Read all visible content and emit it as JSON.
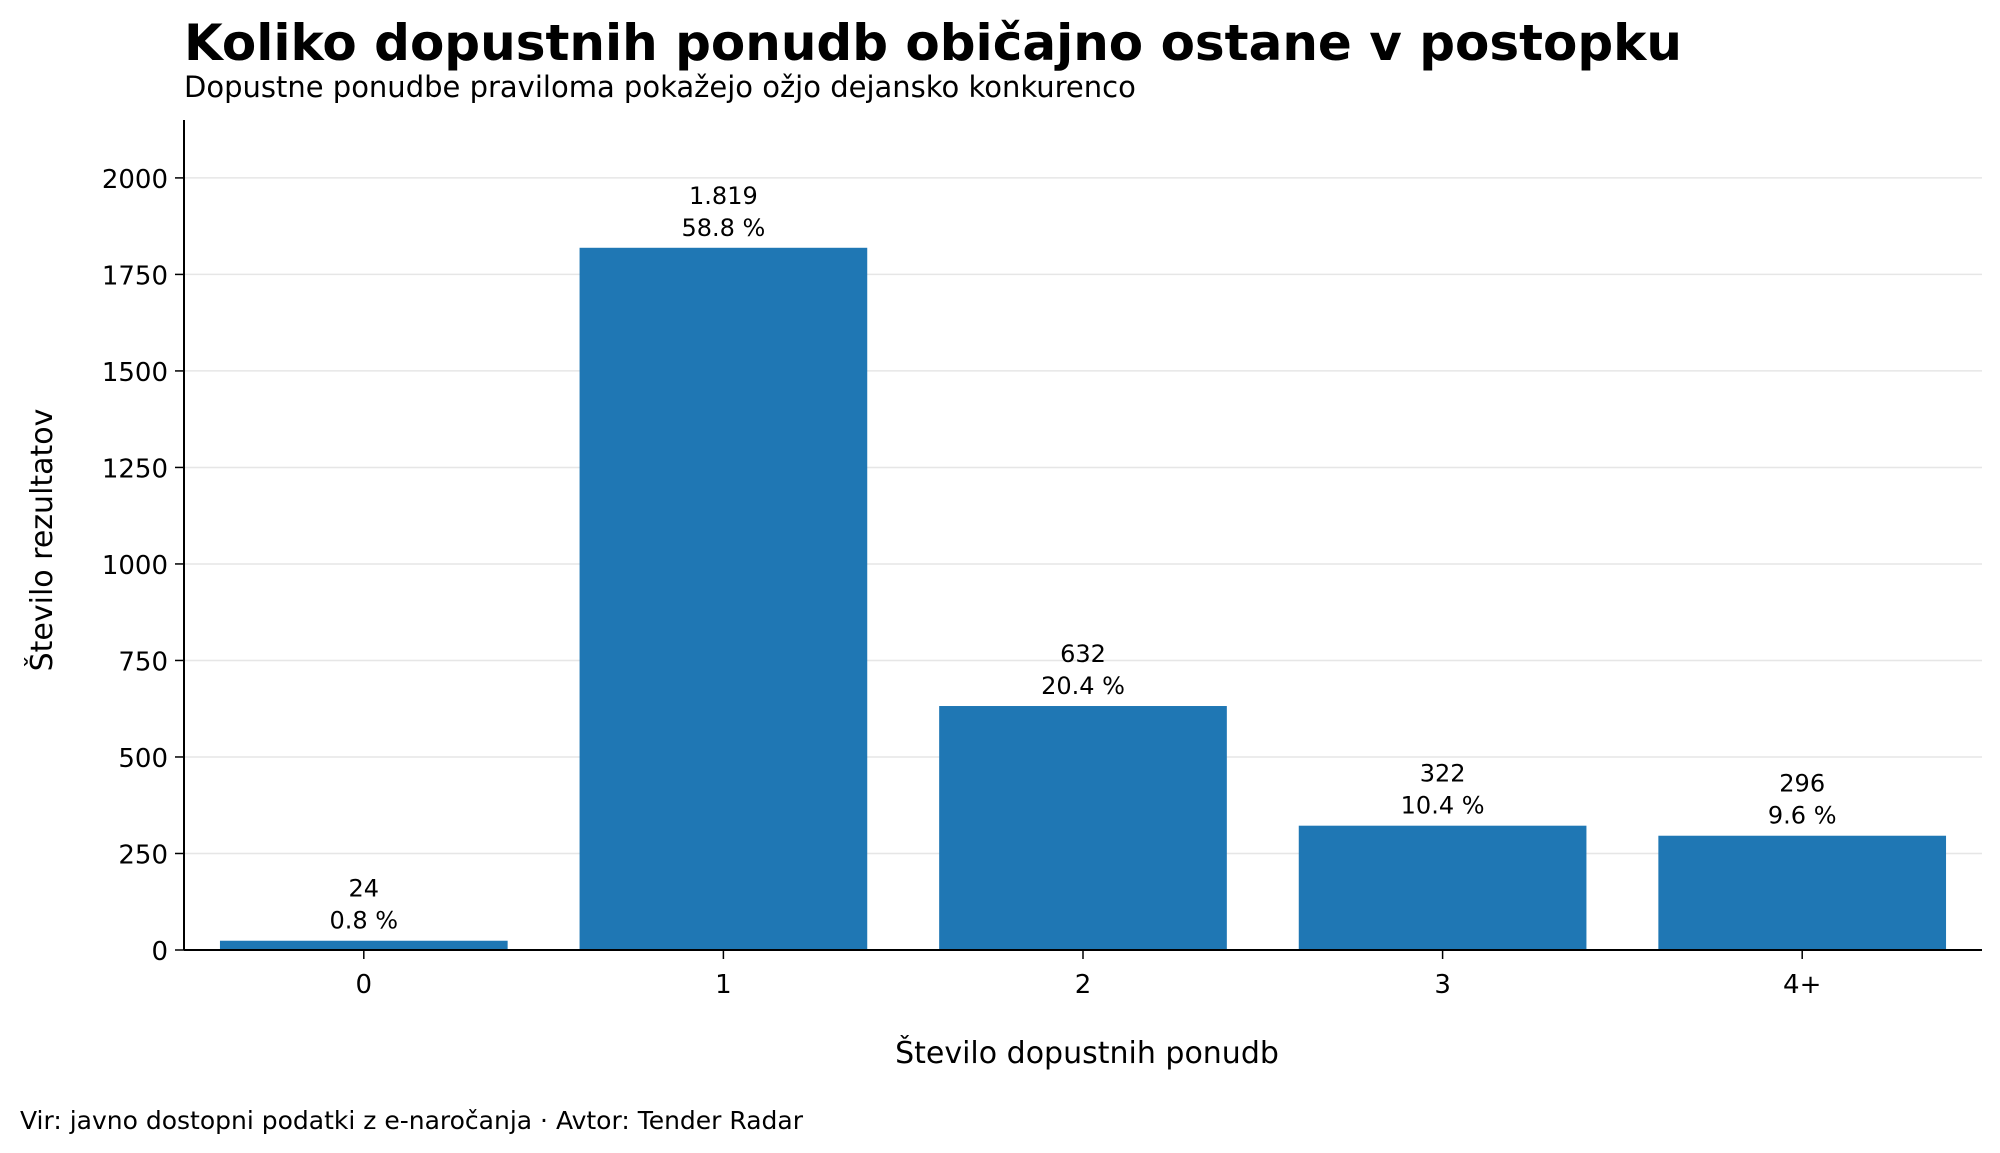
{
  "header": {
    "title": "Koliko dopustnih ponudb običajno ostane v postopku",
    "subtitle": "Dopustne ponudbe praviloma pokažejo ožjo dejansko konkurenco"
  },
  "footer": {
    "source": "Vir: javno dostopni podatki z e-naročanja · Avtor: Tender Radar"
  },
  "colors": {
    "bar": "#1f77b4",
    "grid": "#e6e6e6",
    "axis": "#000000"
  },
  "chart_data": {
    "type": "bar",
    "title": "Koliko dopustnih ponudb običajno ostane v postopku",
    "subtitle": "Dopustne ponudbe praviloma pokažejo ožjo dejansko konkurenco",
    "xlabel": "Število dopustnih ponudb",
    "ylabel": "Število rezultatov",
    "categories": [
      "0",
      "1",
      "2",
      "3",
      "4+"
    ],
    "values": [
      24,
      1819,
      632,
      322,
      296
    ],
    "value_labels": [
      "24",
      "1.819",
      "632",
      "322",
      "296"
    ],
    "percent_labels": [
      "0.8 %",
      "58.8 %",
      "20.4 %",
      "10.4 %",
      "9.6 %"
    ],
    "ylim": [
      0,
      2150
    ],
    "yticks": [
      0,
      250,
      500,
      750,
      1000,
      1250,
      1500,
      1750,
      2000
    ],
    "grid": "y",
    "legend": "none"
  }
}
